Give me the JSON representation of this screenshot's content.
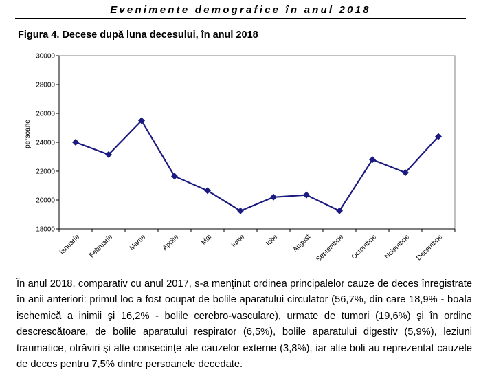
{
  "header": {
    "running_title": "Evenimente demografice în anul 2018"
  },
  "figure": {
    "title": "Figura 4. Decese după luna decesului, în anul 2018"
  },
  "chart_data": {
    "type": "line",
    "categories": [
      "Ianuarie",
      "Februarie",
      "Martie",
      "Aprilie",
      "Mai",
      "Iunie",
      "Iulie",
      "August",
      "Septembrie",
      "Octombrie",
      "Noiembrie",
      "Decembrie"
    ],
    "series": [
      {
        "values": [
          24000,
          23150,
          25500,
          21650,
          20650,
          19250,
          20200,
          20350,
          19250,
          22800,
          21900,
          24400
        ]
      }
    ],
    "ylabel": "persoane",
    "xlabel": "",
    "ylim": [
      18000,
      30000
    ],
    "yticks": [
      18000,
      20000,
      22000,
      24000,
      26000,
      28000,
      30000
    ],
    "grid": false,
    "line_color": "#1a1a80"
  },
  "body": {
    "paragraph": "În anul 2018, comparativ cu anul 2017, s-a menţinut ordinea principalelor cauze de deces înregistrate în anii anteriori: primul loc a fost ocupat de bolile aparatului circulator (56,7%, din care 18,9% - boala ischemică a inimii şi 16,2% - bolile cerebro-vasculare), urmate de tumori (19,6%) şi în ordine descrescătoare, de bolile aparatului respirator (6,5%), bolile aparatului digestiv (5,9%), leziuni traumatice, otrăviri şi alte consecinţe ale cauzelor externe (3,8%), iar alte boli au reprezentat cauzele de deces pentru 7,5% dintre persoanele decedate."
  }
}
